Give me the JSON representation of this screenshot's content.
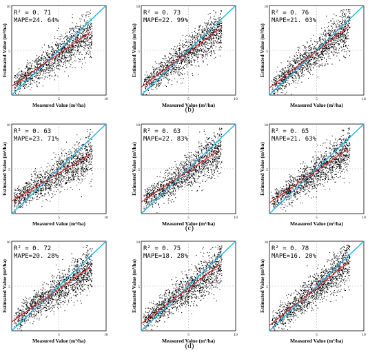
{
  "figure": {
    "xlabel": "Measured Value (m³/ha)",
    "ylabel": "Estimated Value (m³/ha)",
    "row_labels": [
      "(b)",
      "(c)",
      "(d)"
    ],
    "colors": {
      "points": "#000000",
      "fit_line": "#e8222a",
      "one_to_one": "#1ab4e6",
      "grid": "#b0b0b0"
    }
  },
  "chart_data": [
    {
      "type": "scatter",
      "panel": "top-left",
      "stats": [
        "R² = 0. 71",
        "MAPE=24. 64%"
      ],
      "xlim": [
        0,
        10
      ],
      "ylim": [
        0,
        10
      ],
      "xticks": [
        5,
        10
      ],
      "yticks": [
        5,
        10
      ],
      "fit": [
        [
          0,
          1.0
        ],
        [
          8.3,
          7.0
        ]
      ],
      "one_to_one": [
        [
          0,
          0
        ],
        [
          10,
          10
        ]
      ],
      "grid": true
    },
    {
      "type": "scatter",
      "panel": "top-middle",
      "stats": [
        "R² = 0. 73",
        "MAPE=22. 99%"
      ],
      "xlim": [
        0,
        10
      ],
      "ylim": [
        0,
        10
      ],
      "xticks": [
        5,
        10
      ],
      "yticks": [
        5,
        10
      ],
      "fit": [
        [
          0,
          0.9
        ],
        [
          8.3,
          7.4
        ]
      ],
      "one_to_one": [
        [
          0,
          0
        ],
        [
          10,
          10
        ]
      ],
      "grid": true
    },
    {
      "type": "scatter",
      "panel": "top-right",
      "stats": [
        "R² = 0. 76",
        "MAPE=21. 03%"
      ],
      "xlim": [
        0,
        10
      ],
      "ylim": [
        0,
        10
      ],
      "xticks": [
        5,
        10
      ],
      "yticks": [
        5,
        10
      ],
      "fit": [
        [
          0,
          0.8
        ],
        [
          8.3,
          7.6
        ]
      ],
      "one_to_one": [
        [
          0,
          0
        ],
        [
          10,
          10
        ]
      ],
      "grid": true
    },
    {
      "type": "scatter",
      "panel": "middle-left",
      "stats": [
        "R² = 0. 63",
        "MAPE=23. 71%"
      ],
      "xlim": [
        0,
        10
      ],
      "ylim": [
        0,
        10
      ],
      "xticks": [
        5,
        10
      ],
      "yticks": [
        5,
        10
      ],
      "fit": [
        [
          0,
          1.4
        ],
        [
          8.3,
          6.6
        ]
      ],
      "one_to_one": [
        [
          0,
          0
        ],
        [
          10,
          10
        ]
      ],
      "grid": true
    },
    {
      "type": "scatter",
      "panel": "middle-middle",
      "stats": [
        "R² = 0. 63",
        "MAPE=22. 83%"
      ],
      "xlim": [
        0,
        10
      ],
      "ylim": [
        0,
        10
      ],
      "xticks": [
        5,
        10
      ],
      "yticks": [
        5,
        10
      ],
      "fit": [
        [
          0,
          1.3
        ],
        [
          8.3,
          7.1
        ]
      ],
      "one_to_one": [
        [
          0,
          0
        ],
        [
          10,
          10
        ]
      ],
      "grid": true
    },
    {
      "type": "scatter",
      "panel": "middle-right",
      "stats": [
        "R² = 0. 65",
        "MAPE=21. 63%"
      ],
      "xlim": [
        0,
        10
      ],
      "ylim": [
        0,
        10
      ],
      "xticks": [
        5,
        10
      ],
      "yticks": [
        5,
        10
      ],
      "fit": [
        [
          0,
          1.2
        ],
        [
          8.3,
          7.2
        ]
      ],
      "one_to_one": [
        [
          0,
          0
        ],
        [
          10,
          10
        ]
      ],
      "grid": true
    },
    {
      "type": "scatter",
      "panel": "bottom-left",
      "stats": [
        "R² = 0. 72",
        "MAPE=20. 28%"
      ],
      "xlim": [
        0,
        10
      ],
      "ylim": [
        0,
        10
      ],
      "xticks": [
        5,
        10
      ],
      "yticks": [
        5,
        10
      ],
      "fit": [
        [
          0,
          1.0
        ],
        [
          8.3,
          7.1
        ]
      ],
      "one_to_one": [
        [
          0,
          0
        ],
        [
          10,
          10
        ]
      ],
      "grid": true
    },
    {
      "type": "scatter",
      "panel": "bottom-middle",
      "stats": [
        "R² = 0. 75",
        "MAPE=18. 28%"
      ],
      "xlim": [
        0,
        10
      ],
      "ylim": [
        0,
        10
      ],
      "xticks": [
        5,
        10
      ],
      "yticks": [
        5,
        10
      ],
      "fit": [
        [
          0,
          0.8
        ],
        [
          8.3,
          7.4
        ]
      ],
      "one_to_one": [
        [
          0,
          0
        ],
        [
          10,
          10
        ]
      ],
      "grid": true
    },
    {
      "type": "scatter",
      "panel": "bottom-right",
      "stats": [
        "R² = 0. 78",
        "MAPE=16. 20%"
      ],
      "xlim": [
        0,
        10
      ],
      "ylim": [
        0,
        10
      ],
      "xticks": [
        5,
        10
      ],
      "yticks": [
        5,
        10
      ],
      "fit": [
        [
          0,
          0.6
        ],
        [
          8.3,
          7.6
        ]
      ],
      "one_to_one": [
        [
          0,
          0
        ],
        [
          10,
          10
        ]
      ],
      "grid": true
    }
  ]
}
